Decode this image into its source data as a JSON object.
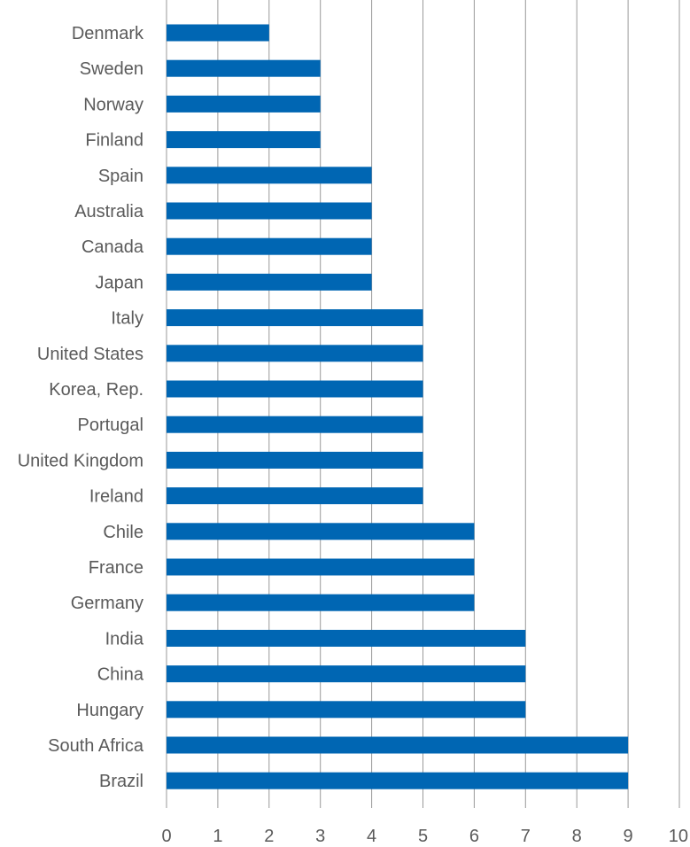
{
  "chart_data": {
    "type": "bar",
    "orientation": "horizontal",
    "categories": [
      "Denmark",
      "Sweden",
      "Norway",
      "Finland",
      "Spain",
      "Australia",
      "Canada",
      "Japan",
      "Italy",
      "United States",
      "Korea, Rep.",
      "Portugal",
      "United Kingdom",
      "Ireland",
      "Chile",
      "France",
      "Germany",
      "India",
      "China",
      "Hungary",
      "South Africa",
      "Brazil"
    ],
    "values": [
      2,
      3,
      3,
      3,
      4,
      4,
      4,
      4,
      5,
      5,
      5,
      5,
      5,
      5,
      6,
      6,
      6,
      7,
      7,
      7,
      9,
      9
    ],
    "xlim": [
      0,
      10
    ],
    "xticks": [
      "0",
      "1",
      "2",
      "3",
      "4",
      "5",
      "6",
      "7",
      "8",
      "9",
      "10"
    ],
    "title": "",
    "xlabel": "",
    "ylabel": "",
    "grid": "vertical",
    "bar_color": "#0066b3",
    "grid_color": "#9a9a9a",
    "text_color": "#5a5a5a"
  }
}
